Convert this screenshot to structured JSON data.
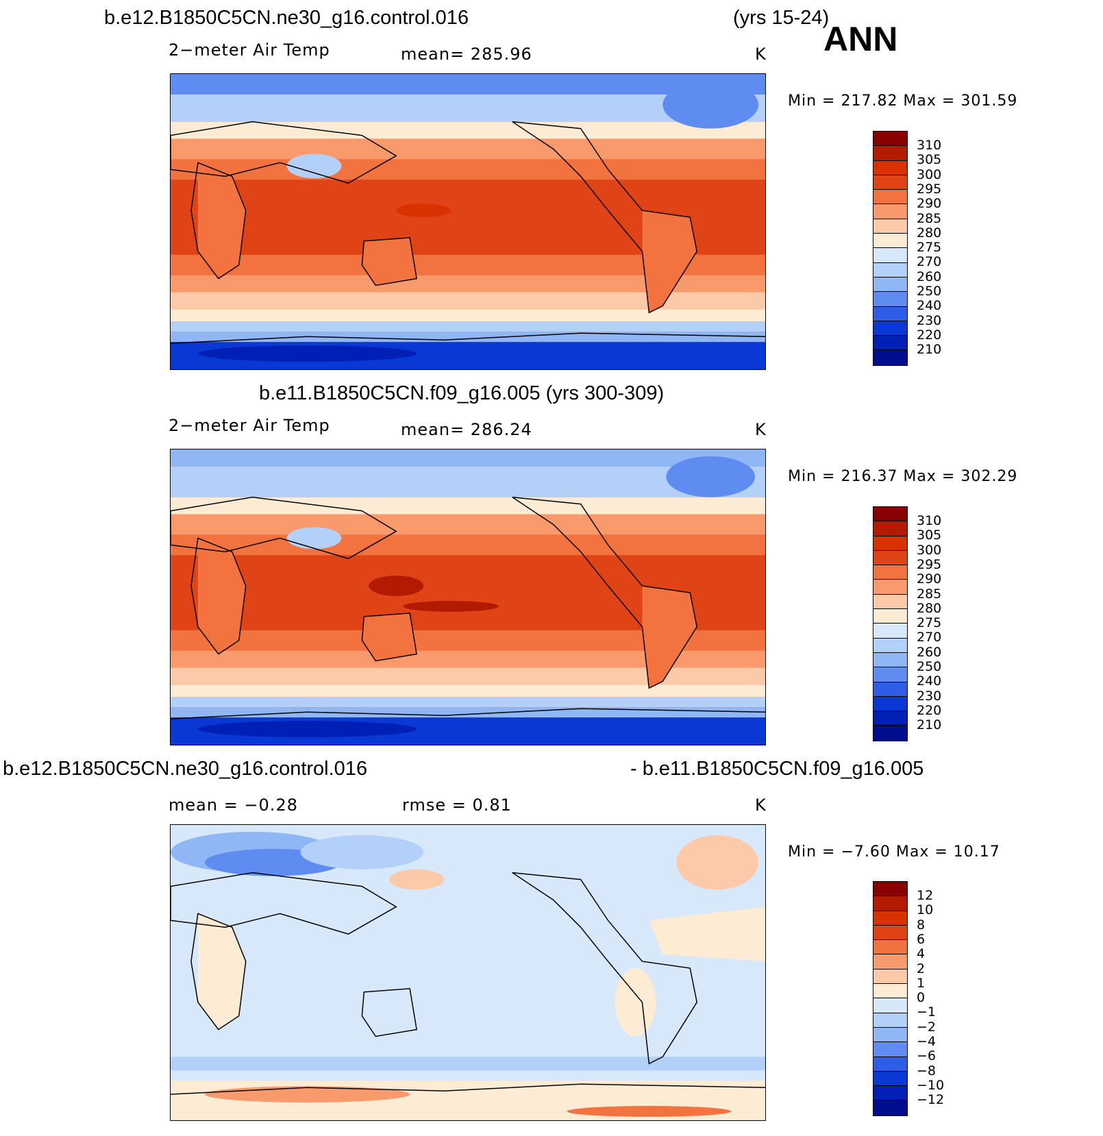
{
  "season": "ANN",
  "panels": [
    {
      "title": "b.e12.B1850C5CN.ne30_g16.control.016",
      "years": "(yrs 15-24)",
      "variable": "2−meter Air Temp",
      "stat": "mean=  285.96",
      "units": "K",
      "minmax": "Min = 217.82 Max = 301.59",
      "levels": [
        "310",
        "305",
        "300",
        "295",
        "290",
        "285",
        "280",
        "275",
        "270",
        "260",
        "250",
        "240",
        "230",
        "220",
        "210"
      ]
    },
    {
      "title": "b.e11.B1850C5CN.f09_g16.005 (yrs 300-309)",
      "variable": "2−meter Air Temp",
      "stat": "mean=  286.24",
      "units": "K",
      "minmax": "Min = 216.37 Max = 302.29",
      "levels": [
        "310",
        "305",
        "300",
        "295",
        "290",
        "285",
        "280",
        "275",
        "270",
        "260",
        "250",
        "240",
        "230",
        "220",
        "210"
      ]
    },
    {
      "title_left": "b.e12.B1850C5CN.ne30_g16.control.016",
      "title_right": "- b.e11.B1850C5CN.f09_g16.005",
      "stat_mean": "mean =   −0.28",
      "stat_rmse": "rmse =    0.81",
      "units": "K",
      "minmax": "Min =  −7.60 Max =  10.17",
      "levels": [
        "12",
        "10",
        "8",
        "6",
        "4",
        "2",
        "1",
        "0",
        "−1",
        "−2",
        "−4",
        "−6",
        "−8",
        "−10",
        "−12"
      ]
    }
  ],
  "colors": {
    "abs_scale": [
      "#890000",
      "#b31b00",
      "#d93100",
      "#e04316",
      "#f2733f",
      "#f89a6c",
      "#fccaa8",
      "#fdebd3",
      "#d7e8fb",
      "#b3d0f8",
      "#8fb6f5",
      "#5e8cf0",
      "#2e5ee8",
      "#0938d4",
      "#0020b5",
      "#000d8c"
    ],
    "diff_scale": [
      "#890000",
      "#b31b00",
      "#d93100",
      "#e04316",
      "#f2733f",
      "#f89a6c",
      "#fccaa8",
      "#fdebd3",
      "#d7e8fb",
      "#b3d0f8",
      "#8fb6f5",
      "#5e8cf0",
      "#2e5ee8",
      "#0938d4",
      "#0020b5",
      "#000d8c"
    ]
  }
}
